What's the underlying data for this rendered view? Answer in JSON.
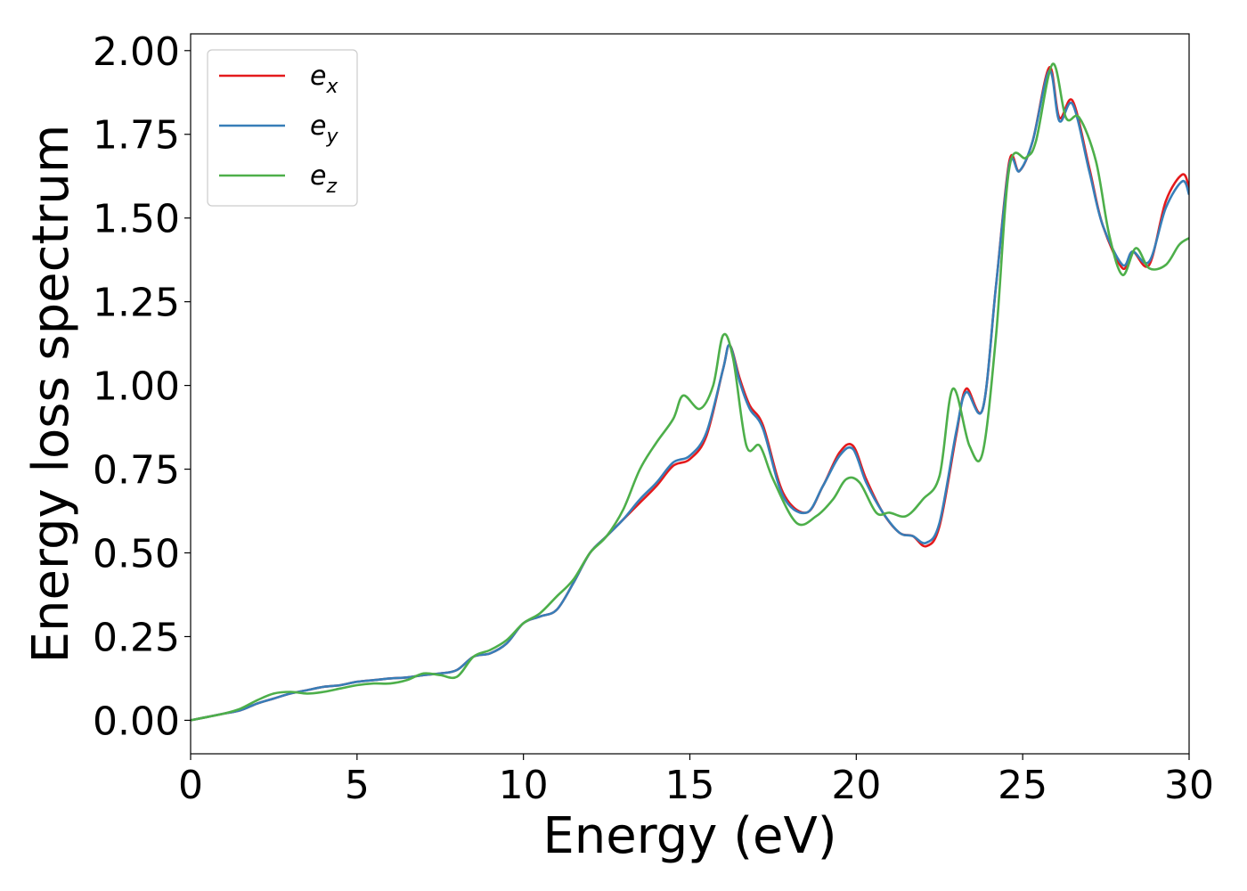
{
  "chart_data": {
    "type": "line",
    "title": "",
    "xlabel": "Energy (eV)",
    "ylabel": "Energy loss spectrum",
    "xlim": [
      0,
      30
    ],
    "ylim": [
      -0.1,
      2.05
    ],
    "x_ticks": [
      0,
      5,
      10,
      15,
      20,
      25,
      30
    ],
    "x_tick_labels": [
      "0",
      "5",
      "10",
      "15",
      "20",
      "25",
      "30"
    ],
    "y_ticks": [
      0.0,
      0.25,
      0.5,
      0.75,
      1.0,
      1.25,
      1.5,
      1.75,
      2.0
    ],
    "y_tick_labels": [
      "0.00",
      "0.25",
      "0.50",
      "0.75",
      "1.00",
      "1.25",
      "1.50",
      "1.75",
      "2.00"
    ],
    "grid": false,
    "legend_position": "top-left",
    "series": [
      {
        "name": "e_x",
        "legend_base": "e",
        "legend_sub": "x",
        "color": "#e41a1c",
        "points": [
          [
            0,
            0
          ],
          [
            0.5,
            0.01
          ],
          [
            1,
            0.02
          ],
          [
            1.5,
            0.03
          ],
          [
            2,
            0.05
          ],
          [
            2.5,
            0.065
          ],
          [
            3,
            0.08
          ],
          [
            3.5,
            0.09
          ],
          [
            4,
            0.1
          ],
          [
            4.5,
            0.105
          ],
          [
            5,
            0.115
          ],
          [
            5.5,
            0.12
          ],
          [
            6,
            0.125
          ],
          [
            6.5,
            0.128
          ],
          [
            7,
            0.135
          ],
          [
            7.5,
            0.14
          ],
          [
            8,
            0.15
          ],
          [
            8.5,
            0.19
          ],
          [
            9,
            0.2
          ],
          [
            9.5,
            0.23
          ],
          [
            10,
            0.29
          ],
          [
            10.5,
            0.31
          ],
          [
            11,
            0.33
          ],
          [
            11.5,
            0.41
          ],
          [
            12,
            0.5
          ],
          [
            12.5,
            0.55
          ],
          [
            13,
            0.6
          ],
          [
            13.5,
            0.65
          ],
          [
            14,
            0.7
          ],
          [
            14.5,
            0.76
          ],
          [
            15,
            0.78
          ],
          [
            15.5,
            0.85
          ],
          [
            16,
            1.05
          ],
          [
            16.2,
            1.12
          ],
          [
            16.5,
            1.02
          ],
          [
            16.8,
            0.94
          ],
          [
            17.2,
            0.88
          ],
          [
            17.8,
            0.68
          ],
          [
            18.5,
            0.62
          ],
          [
            19,
            0.7
          ],
          [
            19.5,
            0.8
          ],
          [
            19.9,
            0.82
          ],
          [
            20.3,
            0.72
          ],
          [
            20.8,
            0.62
          ],
          [
            21.3,
            0.56
          ],
          [
            21.7,
            0.55
          ],
          [
            22.1,
            0.52
          ],
          [
            22.5,
            0.58
          ],
          [
            23,
            0.85
          ],
          [
            23.3,
            0.99
          ],
          [
            23.8,
            0.93
          ],
          [
            24.2,
            1.3
          ],
          [
            24.6,
            1.67
          ],
          [
            24.9,
            1.64
          ],
          [
            25.3,
            1.73
          ],
          [
            25.8,
            1.95
          ],
          [
            26.1,
            1.8
          ],
          [
            26.5,
            1.85
          ],
          [
            27,
            1.65
          ],
          [
            27.4,
            1.48
          ],
          [
            28,
            1.35
          ],
          [
            28.3,
            1.4
          ],
          [
            28.8,
            1.36
          ],
          [
            29.3,
            1.55
          ],
          [
            29.8,
            1.63
          ],
          [
            30,
            1.59
          ]
        ]
      },
      {
        "name": "e_y",
        "legend_base": "e",
        "legend_sub": "y",
        "color": "#377eb8",
        "points": [
          [
            0,
            0
          ],
          [
            0.5,
            0.01
          ],
          [
            1,
            0.02
          ],
          [
            1.5,
            0.03
          ],
          [
            2,
            0.05
          ],
          [
            2.5,
            0.065
          ],
          [
            3,
            0.08
          ],
          [
            3.5,
            0.09
          ],
          [
            4,
            0.1
          ],
          [
            4.5,
            0.105
          ],
          [
            5,
            0.115
          ],
          [
            5.5,
            0.12
          ],
          [
            6,
            0.125
          ],
          [
            6.5,
            0.128
          ],
          [
            7,
            0.135
          ],
          [
            7.5,
            0.14
          ],
          [
            8,
            0.15
          ],
          [
            8.5,
            0.19
          ],
          [
            9,
            0.2
          ],
          [
            9.5,
            0.23
          ],
          [
            10,
            0.29
          ],
          [
            10.5,
            0.31
          ],
          [
            11,
            0.33
          ],
          [
            11.5,
            0.41
          ],
          [
            12,
            0.5
          ],
          [
            12.5,
            0.55
          ],
          [
            13,
            0.6
          ],
          [
            13.5,
            0.66
          ],
          [
            14,
            0.71
          ],
          [
            14.5,
            0.77
          ],
          [
            15,
            0.79
          ],
          [
            15.5,
            0.86
          ],
          [
            16,
            1.05
          ],
          [
            16.2,
            1.12
          ],
          [
            16.5,
            1.01
          ],
          [
            16.8,
            0.93
          ],
          [
            17.2,
            0.87
          ],
          [
            17.8,
            0.67
          ],
          [
            18.5,
            0.62
          ],
          [
            19,
            0.7
          ],
          [
            19.5,
            0.79
          ],
          [
            19.9,
            0.81
          ],
          [
            20.3,
            0.71
          ],
          [
            20.8,
            0.62
          ],
          [
            21.3,
            0.56
          ],
          [
            21.7,
            0.55
          ],
          [
            22.1,
            0.53
          ],
          [
            22.5,
            0.59
          ],
          [
            23,
            0.86
          ],
          [
            23.3,
            0.98
          ],
          [
            23.8,
            0.93
          ],
          [
            24.2,
            1.3
          ],
          [
            24.6,
            1.66
          ],
          [
            24.9,
            1.64
          ],
          [
            25.3,
            1.73
          ],
          [
            25.8,
            1.94
          ],
          [
            26.1,
            1.79
          ],
          [
            26.5,
            1.84
          ],
          [
            27,
            1.64
          ],
          [
            27.4,
            1.48
          ],
          [
            28,
            1.36
          ],
          [
            28.3,
            1.4
          ],
          [
            28.8,
            1.37
          ],
          [
            29.3,
            1.53
          ],
          [
            29.8,
            1.61
          ],
          [
            30,
            1.57
          ]
        ]
      },
      {
        "name": "e_z",
        "legend_base": "e",
        "legend_sub": "z",
        "color": "#4daf4a",
        "points": [
          [
            0,
            0
          ],
          [
            0.5,
            0.01
          ],
          [
            1,
            0.02
          ],
          [
            1.5,
            0.035
          ],
          [
            2,
            0.06
          ],
          [
            2.5,
            0.08
          ],
          [
            3,
            0.085
          ],
          [
            3.5,
            0.08
          ],
          [
            4,
            0.085
          ],
          [
            4.5,
            0.095
          ],
          [
            5,
            0.105
          ],
          [
            5.5,
            0.11
          ],
          [
            6,
            0.11
          ],
          [
            6.5,
            0.12
          ],
          [
            7,
            0.14
          ],
          [
            7.5,
            0.135
          ],
          [
            8,
            0.13
          ],
          [
            8.5,
            0.19
          ],
          [
            9,
            0.21
          ],
          [
            9.5,
            0.24
          ],
          [
            10,
            0.29
          ],
          [
            10.5,
            0.32
          ],
          [
            11,
            0.37
          ],
          [
            11.5,
            0.42
          ],
          [
            12,
            0.5
          ],
          [
            12.5,
            0.55
          ],
          [
            13,
            0.63
          ],
          [
            13.5,
            0.75
          ],
          [
            14,
            0.83
          ],
          [
            14.5,
            0.9
          ],
          [
            14.8,
            0.97
          ],
          [
            15.3,
            0.93
          ],
          [
            15.7,
            1.0
          ],
          [
            16,
            1.15
          ],
          [
            16.3,
            1.08
          ],
          [
            16.7,
            0.82
          ],
          [
            17.1,
            0.82
          ],
          [
            17.5,
            0.72
          ],
          [
            18.2,
            0.59
          ],
          [
            18.8,
            0.61
          ],
          [
            19.3,
            0.66
          ],
          [
            19.7,
            0.72
          ],
          [
            20.1,
            0.71
          ],
          [
            20.6,
            0.62
          ],
          [
            21,
            0.62
          ],
          [
            21.5,
            0.61
          ],
          [
            22,
            0.66
          ],
          [
            22.5,
            0.73
          ],
          [
            22.9,
            0.99
          ],
          [
            23.4,
            0.82
          ],
          [
            23.8,
            0.8
          ],
          [
            24.2,
            1.15
          ],
          [
            24.6,
            1.65
          ],
          [
            25.1,
            1.68
          ],
          [
            25.4,
            1.73
          ],
          [
            25.9,
            1.96
          ],
          [
            26.3,
            1.8
          ],
          [
            26.7,
            1.8
          ],
          [
            27.2,
            1.67
          ],
          [
            27.6,
            1.45
          ],
          [
            28,
            1.33
          ],
          [
            28.4,
            1.41
          ],
          [
            28.8,
            1.35
          ],
          [
            29.3,
            1.36
          ],
          [
            29.7,
            1.42
          ],
          [
            30,
            1.44
          ]
        ]
      }
    ]
  }
}
